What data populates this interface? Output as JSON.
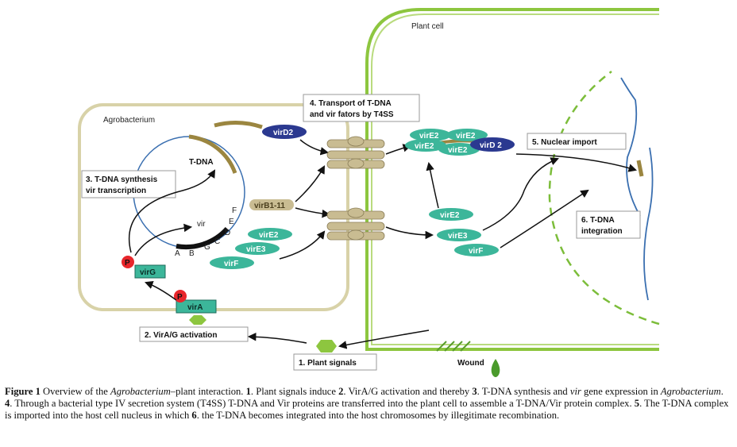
{
  "labels": {
    "plant_cell": "Plant cell",
    "agrobacterium": "Agrobacterium",
    "t_dna": "T-DNA",
    "vir": "vir",
    "wound": "Wound",
    "p": "P",
    "box_transport": [
      "4. Transport of T-DNA",
      "and vir fators by T4SS"
    ],
    "box_synthesis": [
      "3. T-DNA synthesis",
      "vir transcription"
    ],
    "box_nuclear": "5. Nuclear import",
    "box_integration": [
      "6. T-DNA",
      "integration"
    ],
    "box_activation": "2. VirA/G activation",
    "box_signals": "1. Plant signals",
    "gene_letters": {
      "a": "A",
      "b": "B",
      "g": "G",
      "c": "C",
      "d": "D",
      "e": "E",
      "f": "F"
    }
  },
  "proteins": {
    "virD2_bact": "virD2",
    "virB": "virB1-11",
    "virE2_bact": "virE2",
    "virE3_bact": "virE3",
    "virF_bact": "virF",
    "virE2_c1": "virE2",
    "virE2_c2": "virE2",
    "virE2_c3": "virE2",
    "virE2_c4": "virE2",
    "virD2_plant": "virD 2",
    "virE2_plant": "virE2",
    "virE3_plant": "virE3",
    "virF_plant": "virF",
    "virG": "virG",
    "virA": "virA"
  },
  "caption": {
    "lead": "Figure 1",
    "p1": "  Overview of the ",
    "i1": "Agrobacterium",
    "p2": "–plant interaction. ",
    "n1": "1",
    "p3": ". Plant signals induce ",
    "n2": "2",
    "p4": ". VirA/G activation and thereby ",
    "n3": "3",
    "p5": ". T-DNA synthesis and ",
    "i2": "vir",
    "p6": " gene expression in ",
    "i3": "Agrobacterium",
    "p7": ". ",
    "n4": "4",
    "p8": ". Through a bacterial type IV secretion system (T4SS) T-DNA and Vir proteins are transferred into the plant cell to assemble a T-DNA/Vir protein complex. ",
    "n5": "5",
    "p9": ". The T-DNA complex is imported into the host cell nucleus in which ",
    "n6": "6",
    "p10": ". the T-DNA becomes integrated into the host chromosomes by illegitimate recombination."
  },
  "colors": {
    "teal": "#3cb69a",
    "navy": "#2b3990",
    "green_wall": "#8dc63f",
    "bacterium_wall": "#d8d2a8",
    "tdna": "#9b8640",
    "pilus": "#c9bc92",
    "red_p": "#e8262b",
    "plasmid": "#3a6fb0",
    "dashed_nucleus": "#7cbd3a",
    "chromosome": "#3a6fb0"
  }
}
